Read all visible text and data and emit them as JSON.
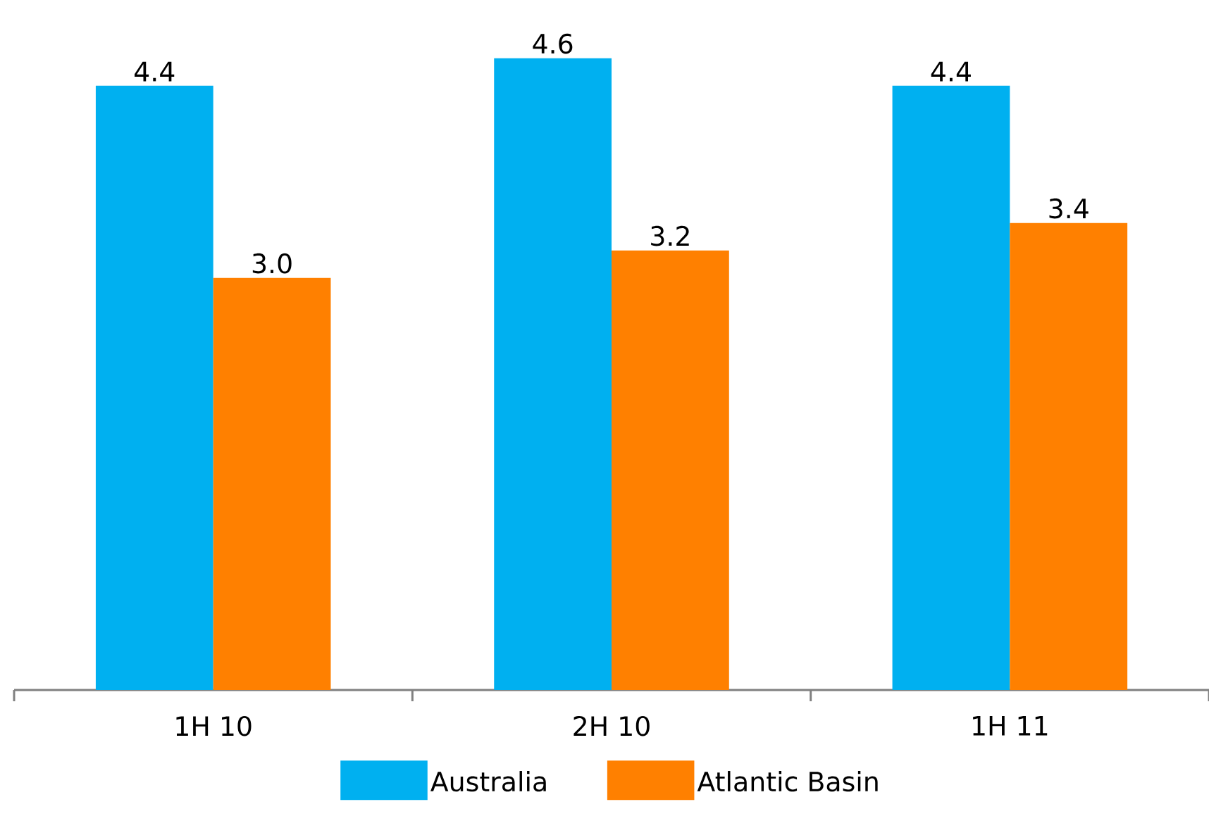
{
  "chart_data": {
    "type": "bar",
    "categories": [
      "1H 10",
      "2H 10",
      "1H 11"
    ],
    "series": [
      {
        "name": "Australia",
        "color": "#00b0f0",
        "values": [
          4.4,
          4.6,
          4.4
        ],
        "value_labels": [
          "4.4",
          "4.6",
          "4.4"
        ]
      },
      {
        "name": "Atlantic Basin",
        "color": "#ff8000",
        "values": [
          3.0,
          3.2,
          3.4
        ],
        "value_labels": [
          "3.0",
          "3.2",
          "3.4"
        ]
      }
    ],
    "legend": "bottom"
  }
}
